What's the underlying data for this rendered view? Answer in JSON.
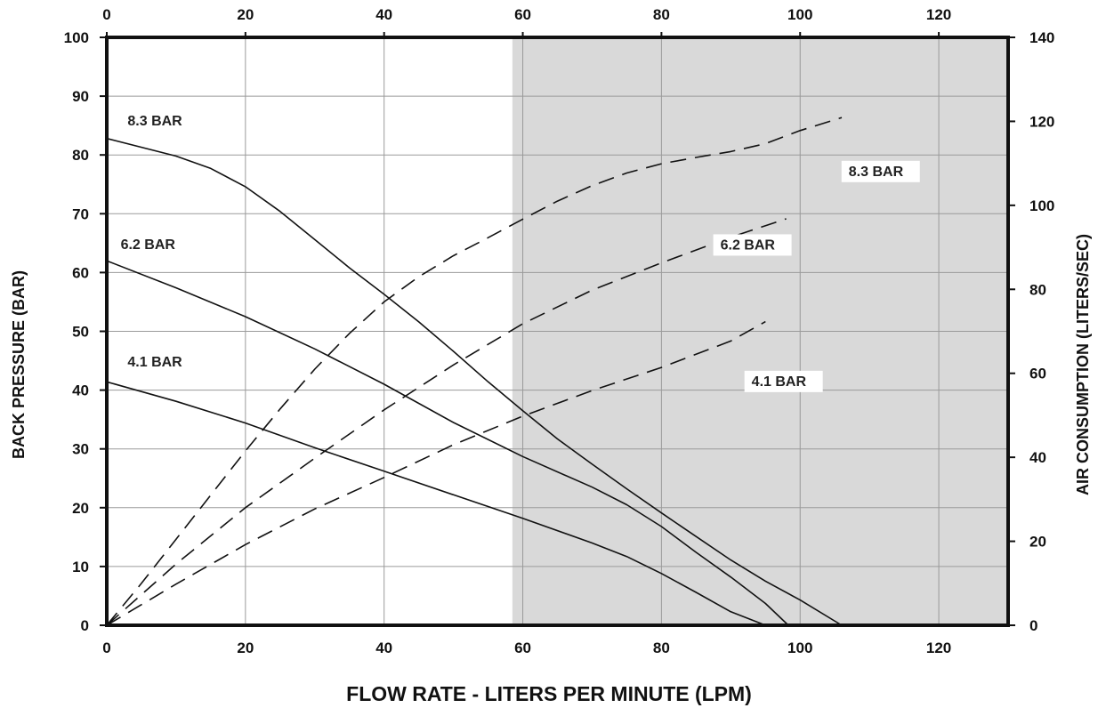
{
  "chart_data": {
    "type": "line",
    "xlabel": "FLOW RATE - LITERS PER MINUTE (LPM)",
    "ylabel_left": "BACK PRESSURE  (BAR)",
    "ylabel_right": "AIR CONSUMPTION  (LITERS/SEC)",
    "xlim": [
      0,
      130
    ],
    "ylim_left": [
      0,
      100
    ],
    "ylim_right": [
      0,
      140
    ],
    "x_ticks": [
      "0",
      "20",
      "40",
      "60",
      "80",
      "100",
      "120"
    ],
    "x_top_ticks": [
      "0",
      "20",
      "40",
      "60",
      "80",
      "100",
      "120"
    ],
    "y_left_ticks": [
      "0",
      "10",
      "20",
      "30",
      "40",
      "50",
      "60",
      "70",
      "80",
      "90",
      "100"
    ],
    "y_right_ticks": [
      "0",
      "20",
      "40",
      "60",
      "80",
      "100",
      "120",
      "140"
    ],
    "grid": true,
    "shaded_region": {
      "x_from": 58.5,
      "x_to": 130,
      "color": "#d9d9d9"
    },
    "series": [
      {
        "name": "8.3 BAR",
        "axis": "left",
        "style": "solid",
        "x": [
          0,
          10,
          15,
          20,
          25,
          30,
          35,
          40,
          45,
          50,
          55,
          60,
          65,
          70,
          75,
          80,
          85,
          90,
          95,
          100,
          106
        ],
        "y": [
          82.8,
          79.8,
          77.7,
          74.6,
          70.4,
          65.6,
          60.8,
          56.3,
          51.6,
          46.6,
          41.4,
          36.5,
          31.7,
          27.4,
          23.2,
          19.1,
          15.1,
          11.1,
          7.5,
          4.3,
          0
        ]
      },
      {
        "name": "6.2 BAR",
        "axis": "left",
        "style": "solid",
        "x": [
          0,
          10,
          20,
          30,
          40,
          50,
          60,
          70,
          75,
          80,
          85,
          90,
          95,
          98.3
        ],
        "y": [
          62,
          57.4,
          52.5,
          47,
          41,
          34.5,
          28.7,
          23.5,
          20.5,
          16.8,
          12.4,
          8.2,
          3.7,
          0
        ]
      },
      {
        "name": "4.1 BAR",
        "axis": "left",
        "style": "solid",
        "x": [
          0,
          10,
          20,
          30,
          40,
          50,
          60,
          70,
          75,
          80,
          85,
          90,
          95
        ],
        "y": [
          41.4,
          38.1,
          34.4,
          30.2,
          26.2,
          22.2,
          18.2,
          14,
          11.7,
          8.8,
          5.6,
          2.3,
          0
        ]
      },
      {
        "name": "8.3 BAR",
        "axis": "right",
        "style": "dashed",
        "x": [
          0,
          5,
          10,
          15,
          20,
          25,
          30,
          35,
          40,
          45,
          50,
          55,
          60,
          65,
          70,
          75,
          80,
          85,
          90,
          95,
          100,
          106
        ],
        "y": [
          0,
          10,
          20.5,
          31,
          41.5,
          51.5,
          61,
          69.5,
          77,
          83,
          88,
          92.3,
          96.7,
          101,
          104.7,
          107.7,
          109.9,
          111.4,
          112.8,
          114.7,
          117.8,
          120.9
        ]
      },
      {
        "name": "6.2 BAR",
        "axis": "right",
        "style": "dashed",
        "x": [
          0,
          10,
          20,
          30,
          40,
          50,
          60,
          70,
          80,
          90,
          98
        ],
        "y": [
          0,
          14.6,
          28,
          39.8,
          51.3,
          62,
          71.8,
          79.8,
          86.3,
          92.4,
          96.8
        ]
      },
      {
        "name": "4.1 BAR",
        "axis": "right",
        "style": "dashed",
        "x": [
          0,
          10,
          20,
          30,
          40,
          50,
          60,
          70,
          80,
          90,
          95
        ],
        "y": [
          0,
          9.8,
          19.2,
          27.7,
          35.2,
          43,
          49.8,
          55.9,
          61.4,
          67.7,
          72.3
        ]
      }
    ],
    "annotations": [
      {
        "text": "8.3 BAR",
        "x": 3,
        "y": 85,
        "axis": "left",
        "boxed": false
      },
      {
        "text": "6.2 BAR",
        "x": 2,
        "y": 64,
        "axis": "left",
        "boxed": false
      },
      {
        "text": "4.1 BAR",
        "x": 3,
        "y": 44,
        "axis": "left",
        "boxed": false
      },
      {
        "text": "8.3 BAR",
        "x": 107,
        "y": 107,
        "axis": "right",
        "boxed": true
      },
      {
        "text": "6.2 BAR",
        "x": 88.5,
        "y": 89.5,
        "axis": "right",
        "boxed": true
      },
      {
        "text": "4.1 BAR",
        "x": 93,
        "y": 57,
        "axis": "right",
        "boxed": true
      }
    ]
  }
}
